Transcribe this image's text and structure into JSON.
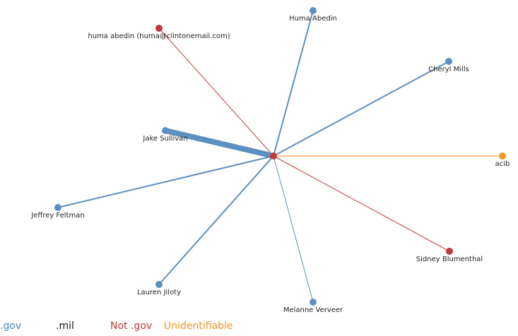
{
  "colors": {
    "gov": "#5b90bf",
    "mil": "#111111",
    "not_gov": "#c0393b",
    "unidentifiable": "#f39425",
    "unidentifiable_edge": "#f9c68b"
  },
  "legend": {
    "gov": ".gov",
    "mil": ".mil",
    "not_gov": "Not .gov",
    "unidentifiable": "Unidentifiable"
  },
  "graph": {
    "center": {
      "category": "not_gov"
    },
    "nodes": [
      {
        "id": "huma-abedin-private",
        "label": "huma abedin (huma@clintonemail.com)",
        "category": "not_gov",
        "weight": 1
      },
      {
        "id": "huma-abedin",
        "label": "Huma Abedin",
        "category": "gov",
        "weight": 2
      },
      {
        "id": "cheryl-mills",
        "label": "Cheryl Mills",
        "category": "gov",
        "weight": 2
      },
      {
        "id": "jake-sullivan",
        "label": "Jake Sullivan",
        "category": "gov",
        "weight": 8
      },
      {
        "id": "acib",
        "label": "acib",
        "category": "unidentifiable",
        "weight": 2
      },
      {
        "id": "jeffrey-feltman",
        "label": "Jeffrey Feltman",
        "category": "gov",
        "weight": 2
      },
      {
        "id": "sidney-blumenthal",
        "label": "Sidney Blumenthal",
        "category": "not_gov",
        "weight": 1
      },
      {
        "id": "lauren-jiloty",
        "label": "Lauren Jiloty",
        "category": "gov",
        "weight": 2
      },
      {
        "id": "melanne-verveer",
        "label": "Melanne Verveer",
        "category": "gov",
        "weight": 1
      }
    ]
  }
}
